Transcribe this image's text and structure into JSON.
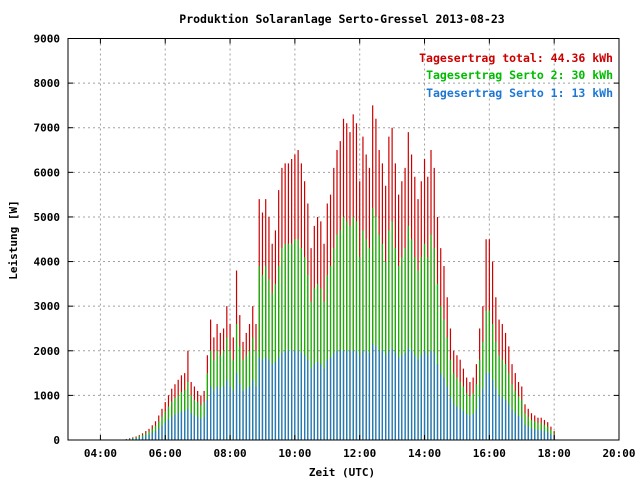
{
  "chart_data": {
    "type": "bar",
    "title": "Produktion Solaranlage Serto-Gressel 2013-08-23",
    "xlabel": "Zeit (UTC)",
    "ylabel": "Leistung [W]",
    "x_unit": "hours UTC",
    "xlim": [
      3,
      20
    ],
    "ylim": [
      0,
      9000
    ],
    "x_ticks": [
      {
        "value": 4,
        "label": "04:00"
      },
      {
        "value": 6,
        "label": "06:00"
      },
      {
        "value": 8,
        "label": "08:00"
      },
      {
        "value": 10,
        "label": "10:00"
      },
      {
        "value": 12,
        "label": "12:00"
      },
      {
        "value": 14,
        "label": "14:00"
      },
      {
        "value": 16,
        "label": "16:00"
      },
      {
        "value": 18,
        "label": "18:00"
      },
      {
        "value": 20,
        "label": "20:00"
      }
    ],
    "y_ticks": [
      0,
      1000,
      2000,
      3000,
      4000,
      5000,
      6000,
      7000,
      8000,
      9000
    ],
    "grid": true,
    "legend_position": "top-right",
    "legend": [
      {
        "text": "Tagesertrag total: 44.36 kWh",
        "color": "#cc0000"
      },
      {
        "text": "Tagesertrag Serto 2: 30 kWh",
        "color": "#00bb00"
      },
      {
        "text": "Tagesertrag Serto 1: 13 kWh",
        "color": "#1e78d2"
      }
    ],
    "series": [
      {
        "color": "#cc0000",
        "x": [
          4.8,
          4.9,
          5.0,
          5.1,
          5.2,
          5.3,
          5.4,
          5.5,
          5.6,
          5.7,
          5.8,
          5.9,
          6.0,
          6.1,
          6.2,
          6.3,
          6.4,
          6.5,
          6.6,
          6.7,
          6.8,
          6.9,
          7.0,
          7.1,
          7.2,
          7.3,
          7.4,
          7.5,
          7.6,
          7.7,
          7.8,
          7.9,
          8.0,
          8.1,
          8.2,
          8.3,
          8.4,
          8.5,
          8.6,
          8.7,
          8.8,
          8.9,
          9.0,
          9.1,
          9.2,
          9.3,
          9.4,
          9.5,
          9.6,
          9.7,
          9.8,
          9.9,
          10.0,
          10.1,
          10.2,
          10.3,
          10.4,
          10.5,
          10.6,
          10.7,
          10.8,
          10.9,
          11.0,
          11.1,
          11.2,
          11.3,
          11.4,
          11.5,
          11.6,
          11.7,
          11.8,
          11.9,
          12.0,
          12.1,
          12.2,
          12.3,
          12.4,
          12.5,
          12.6,
          12.7,
          12.8,
          12.9,
          13.0,
          13.1,
          13.2,
          13.3,
          13.4,
          13.5,
          13.6,
          13.7,
          13.8,
          13.9,
          14.0,
          14.1,
          14.2,
          14.3,
          14.4,
          14.5,
          14.6,
          14.7,
          14.8,
          14.9,
          15.0,
          15.1,
          15.2,
          15.3,
          15.4,
          15.5,
          15.6,
          15.7,
          15.8,
          15.9,
          16.0,
          16.1,
          16.2,
          16.3,
          16.4,
          16.5,
          16.6,
          16.7,
          16.8,
          16.9,
          17.0,
          17.1,
          17.2,
          17.3,
          17.4,
          17.5,
          17.6,
          17.7,
          17.8,
          17.9,
          18.0
        ],
        "values": [
          20,
          40,
          60,
          80,
          110,
          150,
          200,
          250,
          330,
          420,
          550,
          700,
          850,
          1000,
          1150,
          1250,
          1350,
          1450,
          1500,
          2000,
          1300,
          1200,
          1100,
          1000,
          1100,
          1900,
          2700,
          2300,
          2600,
          2400,
          2500,
          3000,
          2600,
          2300,
          3800,
          2800,
          2200,
          2400,
          2600,
          3000,
          2600,
          5400,
          5100,
          5400,
          5000,
          4400,
          4700,
          5600,
          6100,
          6200,
          6200,
          6300,
          6400,
          6500,
          6200,
          5800,
          5300,
          4300,
          4800,
          5000,
          4900,
          4400,
          5300,
          5500,
          6100,
          6500,
          6700,
          7200,
          7100,
          6900,
          7300,
          7100,
          5800,
          6800,
          6400,
          6100,
          7500,
          7200,
          6500,
          6200,
          5700,
          6800,
          7000,
          6200,
          5500,
          5800,
          6100,
          6900,
          6400,
          5900,
          5400,
          5800,
          6300,
          5900,
          6500,
          6100,
          5000,
          4300,
          3900,
          3200,
          2500,
          2000,
          1900,
          1800,
          1600,
          1400,
          1300,
          1400,
          1700,
          2500,
          3000,
          4500,
          4500,
          4000,
          3200,
          2700,
          2600,
          2400,
          2100,
          1700,
          1500,
          1300,
          1200,
          800,
          700,
          600,
          550,
          500,
          500,
          450,
          400,
          300,
          200
        ]
      },
      {
        "color": "#00bb00",
        "x": [
          4.8,
          4.9,
          5.0,
          5.1,
          5.2,
          5.3,
          5.4,
          5.5,
          5.6,
          5.7,
          5.8,
          5.9,
          6.0,
          6.1,
          6.2,
          6.3,
          6.4,
          6.5,
          6.6,
          6.7,
          6.8,
          6.9,
          7.0,
          7.1,
          7.2,
          7.3,
          7.4,
          7.5,
          7.6,
          7.7,
          7.8,
          7.9,
          8.0,
          8.1,
          8.2,
          8.3,
          8.4,
          8.5,
          8.6,
          8.7,
          8.8,
          8.9,
          9.0,
          9.1,
          9.2,
          9.3,
          9.4,
          9.5,
          9.6,
          9.7,
          9.8,
          9.9,
          10.0,
          10.1,
          10.2,
          10.3,
          10.4,
          10.5,
          10.6,
          10.7,
          10.8,
          10.9,
          11.0,
          11.1,
          11.2,
          11.3,
          11.4,
          11.5,
          11.6,
          11.7,
          11.8,
          11.9,
          12.0,
          12.1,
          12.2,
          12.3,
          12.4,
          12.5,
          12.6,
          12.7,
          12.8,
          12.9,
          13.0,
          13.1,
          13.2,
          13.3,
          13.4,
          13.5,
          13.6,
          13.7,
          13.8,
          13.9,
          14.0,
          14.1,
          14.2,
          14.3,
          14.4,
          14.5,
          14.6,
          14.7,
          14.8,
          14.9,
          15.0,
          15.1,
          15.2,
          15.3,
          15.4,
          15.5,
          15.6,
          15.7,
          15.8,
          15.9,
          16.0,
          16.1,
          16.2,
          16.3,
          16.4,
          16.5,
          16.6,
          16.7,
          16.8,
          16.9,
          17.0,
          17.1,
          17.2,
          17.3,
          17.4,
          17.5,
          17.6,
          17.7,
          17.8,
          17.9,
          18.0
        ],
        "values": [
          15,
          30,
          45,
          60,
          85,
          110,
          150,
          190,
          250,
          320,
          420,
          520,
          640,
          750,
          860,
          940,
          1000,
          1080,
          1120,
          1300,
          1000,
          900,
          850,
          780,
          850,
          1500,
          2000,
          1800,
          2000,
          1900,
          2000,
          2300,
          2000,
          1800,
          2600,
          2100,
          1800,
          1900,
          2000,
          2300,
          2000,
          3900,
          3700,
          3900,
          3600,
          3300,
          3500,
          3900,
          4300,
          4400,
          4400,
          4400,
          4500,
          4500,
          4300,
          4100,
          3700,
          3100,
          3400,
          3500,
          3400,
          3100,
          3700,
          3900,
          4300,
          4600,
          4700,
          5000,
          4900,
          4800,
          5000,
          4900,
          4100,
          4700,
          4500,
          4300,
          5200,
          5000,
          4600,
          4400,
          4000,
          4700,
          4900,
          4300,
          3900,
          4100,
          4300,
          4800,
          4500,
          4100,
          3800,
          4100,
          4400,
          4100,
          4600,
          4300,
          3500,
          3000,
          2700,
          2300,
          1800,
          1500,
          1400,
          1300,
          1200,
          1050,
          980,
          1050,
          1250,
          1800,
          2200,
          2900,
          2900,
          2600,
          2200,
          1900,
          1800,
          1700,
          1500,
          1250,
          1100,
          980,
          900,
          600,
          520,
          450,
          420,
          380,
          380,
          340,
          300,
          230,
          150
        ]
      },
      {
        "color": "#1e78d2",
        "x": [
          4.8,
          4.9,
          5.0,
          5.1,
          5.2,
          5.3,
          5.4,
          5.5,
          5.6,
          5.7,
          5.8,
          5.9,
          6.0,
          6.1,
          6.2,
          6.3,
          6.4,
          6.5,
          6.6,
          6.7,
          6.8,
          6.9,
          7.0,
          7.1,
          7.2,
          7.3,
          7.4,
          7.5,
          7.6,
          7.7,
          7.8,
          7.9,
          8.0,
          8.1,
          8.2,
          8.3,
          8.4,
          8.5,
          8.6,
          8.7,
          8.8,
          8.9,
          9.0,
          9.1,
          9.2,
          9.3,
          9.4,
          9.5,
          9.6,
          9.7,
          9.8,
          9.9,
          10.0,
          10.1,
          10.2,
          10.3,
          10.4,
          10.5,
          10.6,
          10.7,
          10.8,
          10.9,
          11.0,
          11.1,
          11.2,
          11.3,
          11.4,
          11.5,
          11.6,
          11.7,
          11.8,
          11.9,
          12.0,
          12.1,
          12.2,
          12.3,
          12.4,
          12.5,
          12.6,
          12.7,
          12.8,
          12.9,
          13.0,
          13.1,
          13.2,
          13.3,
          13.4,
          13.5,
          13.6,
          13.7,
          13.8,
          13.9,
          14.0,
          14.1,
          14.2,
          14.3,
          14.4,
          14.5,
          14.6,
          14.7,
          14.8,
          14.9,
          15.0,
          15.1,
          15.2,
          15.3,
          15.4,
          15.5,
          15.6,
          15.7,
          15.8,
          15.9,
          16.0,
          16.1,
          16.2,
          16.3,
          16.4,
          16.5,
          16.6,
          16.7,
          16.8,
          16.9,
          17.0,
          17.1,
          17.2,
          17.3,
          17.4,
          17.5,
          17.6,
          17.7,
          17.8,
          17.9,
          18.0
        ],
        "values": [
          10,
          20,
          30,
          40,
          55,
          75,
          100,
          120,
          160,
          200,
          260,
          320,
          400,
          460,
          520,
          570,
          600,
          640,
          660,
          700,
          600,
          550,
          520,
          480,
          520,
          900,
          1200,
          1100,
          1200,
          1150,
          1200,
          1350,
          1200,
          1100,
          1500,
          1250,
          1100,
          1150,
          1200,
          1350,
          1200,
          1850,
          1800,
          1850,
          1800,
          1700,
          1750,
          1850,
          1950,
          2000,
          2000,
          2000,
          2000,
          2000,
          1950,
          1900,
          1800,
          1600,
          1700,
          1750,
          1700,
          1600,
          1800,
          1850,
          1950,
          2000,
          2000,
          2000,
          2000,
          2000,
          2000,
          2000,
          1900,
          2000,
          2000,
          1950,
          2150,
          2100,
          2000,
          2000,
          1900,
          2000,
          2050,
          1950,
          1850,
          1900,
          1950,
          2050,
          2000,
          1900,
          1800,
          1900,
          2000,
          1900,
          2000,
          1950,
          1700,
          1500,
          1400,
          1200,
          950,
          800,
          750,
          700,
          650,
          580,
          540,
          580,
          680,
          950,
          1150,
          1500,
          1500,
          1350,
          1150,
          1000,
          950,
          900,
          800,
          680,
          600,
          540,
          500,
          340,
          300,
          260,
          240,
          220,
          220,
          200,
          170,
          130,
          90
        ]
      }
    ]
  }
}
